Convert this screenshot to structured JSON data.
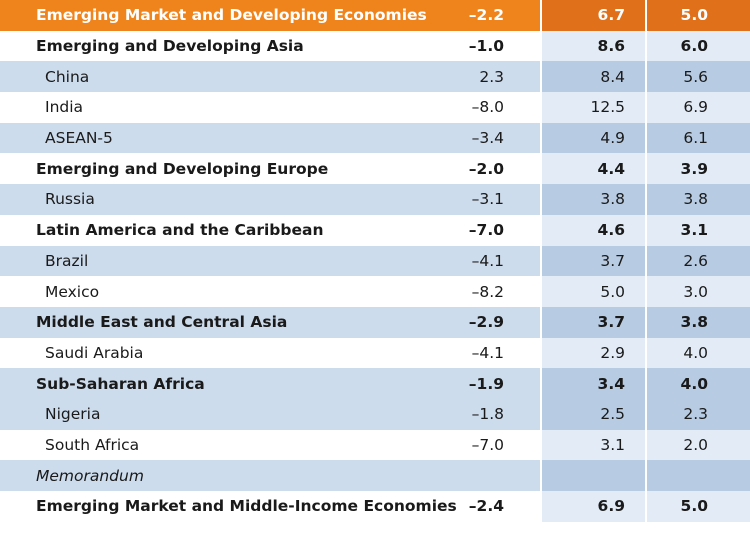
{
  "rows": [
    {
      "label": "Emerging Market and Developing Economies",
      "v1": "–2.2",
      "v2": "6.7",
      "v3": "5.0"
    },
    {
      "label": "Emerging and Developing Asia",
      "v1": "–1.0",
      "v2": "8.6",
      "v3": "6.0"
    },
    {
      "label": "China",
      "v1": "2.3",
      "v2": "8.4",
      "v3": "5.6"
    },
    {
      "label": "India",
      "v1": "–8.0",
      "v2": "12.5",
      "v3": "6.9"
    },
    {
      "label": "ASEAN-5",
      "v1": "–3.4",
      "v2": "4.9",
      "v3": "6.1"
    },
    {
      "label": "Emerging and Developing Europe",
      "v1": "–2.0",
      "v2": "4.4",
      "v3": "3.9"
    },
    {
      "label": "Russia",
      "v1": "–3.1",
      "v2": "3.8",
      "v3": "3.8"
    },
    {
      "label": "Latin America and the Caribbean",
      "v1": "–7.0",
      "v2": "4.6",
      "v3": "3.1"
    },
    {
      "label": "Brazil",
      "v1": "–4.1",
      "v2": "3.7",
      "v3": "2.6"
    },
    {
      "label": "Mexico",
      "v1": "–8.2",
      "v2": "5.0",
      "v3": "3.0"
    },
    {
      "label": "Middle East and Central Asia",
      "v1": "–2.9",
      "v2": "3.7",
      "v3": "3.8"
    },
    {
      "label": "Saudi Arabia",
      "v1": "–4.1",
      "v2": "2.9",
      "v3": "4.0"
    },
    {
      "label": "Sub-Saharan Africa",
      "v1": "–1.9",
      "v2": "3.4",
      "v3": "4.0"
    },
    {
      "label": "Nigeria",
      "v1": "–1.8",
      "v2": "2.5",
      "v3": "2.3"
    },
    {
      "label": "South Africa",
      "v1": "–7.0",
      "v2": "3.1",
      "v3": "2.0"
    },
    {
      "label": "Memorandum",
      "v1": "",
      "v2": "",
      "v3": ""
    },
    {
      "label": "Emerging Market and Middle-Income Economies",
      "v1": "–2.4",
      "v2": "6.9",
      "v3": "5.0"
    }
  ]
}
